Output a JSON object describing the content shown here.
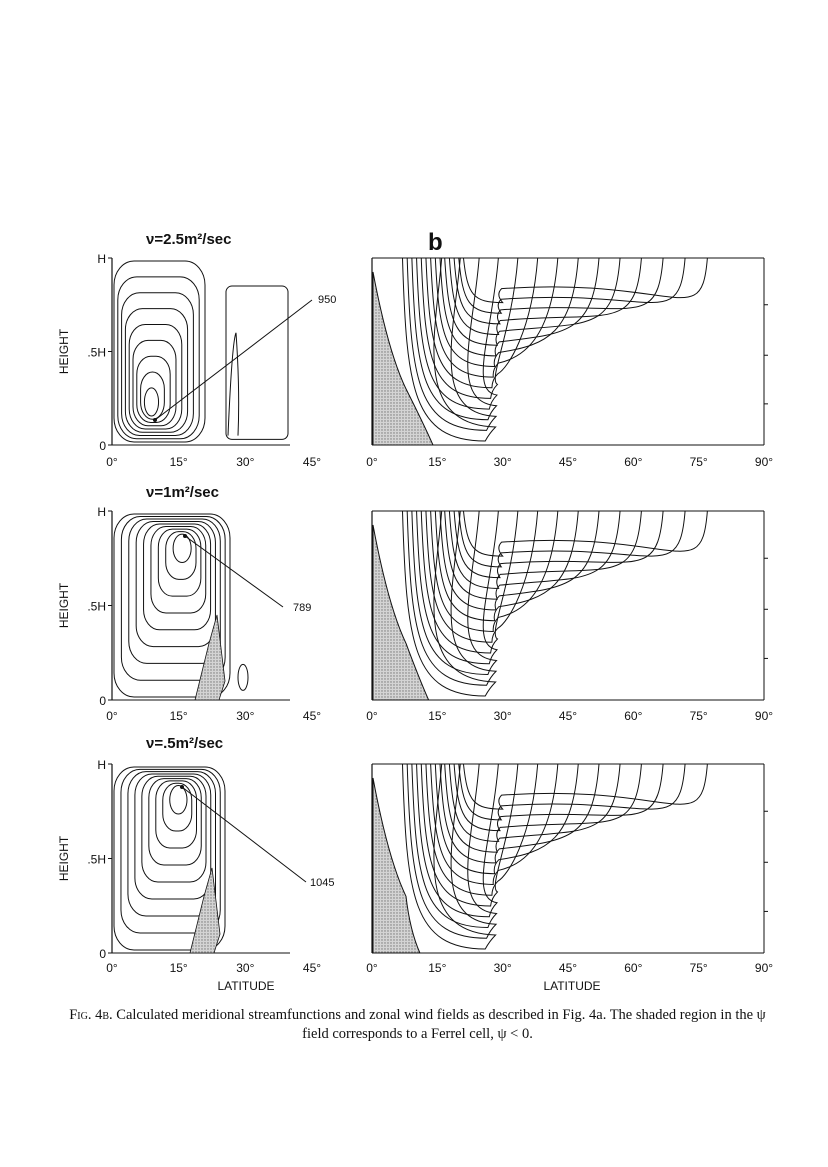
{
  "panel_letter": "b",
  "viscosity_labels": [
    "ν=2.5m²/sec",
    "ν=1m²/sec",
    "ν=.5m²/sec"
  ],
  "max_labels": [
    "950",
    "789",
    "1045"
  ],
  "y_label": "HEIGHT",
  "y_ticks": [
    "0",
    ".5H",
    "H"
  ],
  "x_ticks_left": [
    "0°",
    "15°",
    "30°",
    "45°"
  ],
  "x_ticks_right": [
    "0°",
    "15°",
    "30°",
    "45°",
    "60°",
    "75°",
    "90°"
  ],
  "x_label": "LATITUDE",
  "caption": {
    "fig": "Fig. 4b.",
    "text": "Calculated meridional streamfunctions and zonal wind fields as described in Fig. 4a. The shaded region in the ψ field corresponds to a Ferrel cell, ψ < 0."
  },
  "colors": {
    "ink": "#111111",
    "shade": "#b8b8b8"
  }
}
